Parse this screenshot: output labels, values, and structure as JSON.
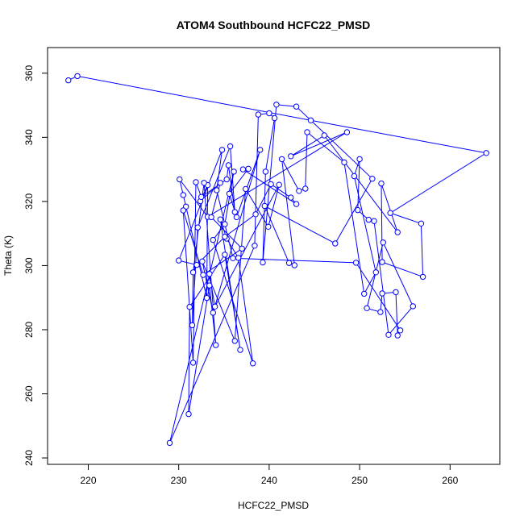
{
  "chart_data": {
    "type": "line",
    "title": "ATOM4 Southbound HCFC22_PMSD",
    "xlabel": "HCFC22_PMSD",
    "ylabel": "Theta (K)",
    "xlim": [
      215.5,
      265.5
    ],
    "ylim": [
      238,
      368
    ],
    "xticks": [
      220,
      230,
      240,
      250,
      260
    ],
    "yticks": [
      240,
      260,
      280,
      300,
      320,
      340,
      360
    ],
    "grid": false,
    "legend": "none",
    "series": [
      {
        "color": "#0000ff",
        "markers": "open-circle",
        "points": [
          [
            217.8,
            357.8
          ],
          [
            218.8,
            359.1
          ],
          [
            244.6,
            345.3
          ],
          [
            264.0,
            335.1
          ],
          [
            253.4,
            316.4
          ],
          [
            256.8,
            313.1
          ],
          [
            257.0,
            296.5
          ],
          [
            252.5,
            301.1
          ],
          [
            252.4,
            325.6
          ],
          [
            254.2,
            310.4
          ],
          [
            246.1,
            340.6
          ],
          [
            242.4,
            334.1
          ],
          [
            248.6,
            341.6
          ],
          [
            233.2,
            315.2
          ],
          [
            230.1,
            326.9
          ],
          [
            230.5,
            322.0
          ],
          [
            230.8,
            318.4
          ],
          [
            233.1,
            289.9
          ],
          [
            233.2,
            325.1
          ],
          [
            232.4,
            320.1
          ],
          [
            234.6,
            325.8
          ],
          [
            233.6,
            315.1
          ],
          [
            237.0,
            305.3
          ],
          [
            232.7,
            297.1
          ],
          [
            230.5,
            317.2
          ],
          [
            231.6,
            269.7
          ],
          [
            231.9,
            326.0
          ],
          [
            232.5,
            321.4
          ],
          [
            235.3,
            326.9
          ],
          [
            235.5,
            331.3
          ],
          [
            236.2,
            316.7
          ],
          [
            235.7,
            337.2
          ],
          [
            232.1,
            311.9
          ],
          [
            231.5,
            281.4
          ],
          [
            231.6,
            297.9
          ],
          [
            232.8,
            325.8
          ],
          [
            234.1,
            275.2
          ],
          [
            233.4,
            293.8
          ],
          [
            231.1,
            253.7
          ],
          [
            231.2,
            287.1
          ],
          [
            235.1,
            303.4
          ],
          [
            236.8,
            273.7
          ],
          [
            234.6,
            314.4
          ],
          [
            235.3,
            308.4
          ],
          [
            236.6,
            302.4
          ],
          [
            238.2,
            269.5
          ],
          [
            233.8,
            308.0
          ],
          [
            235.1,
            312.9
          ],
          [
            236.1,
            329.3
          ],
          [
            229.0,
            244.7
          ],
          [
            238.4,
            306.2
          ],
          [
            238.8,
            347.1
          ],
          [
            240.0,
            347.5
          ],
          [
            240.6,
            346.0
          ],
          [
            239.6,
            329.3
          ],
          [
            239.3,
            301.0
          ],
          [
            240.8,
            350.2
          ],
          [
            243.0,
            349.6
          ],
          [
            251.4,
            327.1
          ],
          [
            247.3,
            306.9
          ],
          [
            239.5,
            318.6
          ],
          [
            242.2,
            300.8
          ],
          [
            242.8,
            300.1
          ],
          [
            241.4,
            333.2
          ],
          [
            243.3,
            323.3
          ],
          [
            244.0,
            324.0
          ],
          [
            244.2,
            341.6
          ],
          [
            248.3,
            332.2
          ],
          [
            250.5,
            291.2
          ],
          [
            251.8,
            297.9
          ],
          [
            249.4,
            327.9
          ],
          [
            250.0,
            333.2
          ],
          [
            249.8,
            317.3
          ],
          [
            251.0,
            314.3
          ],
          [
            251.6,
            313.9
          ],
          [
            253.2,
            278.4
          ],
          [
            255.9,
            287.3
          ],
          [
            252.6,
            307.2
          ],
          [
            250.8,
            286.7
          ],
          [
            252.3,
            285.5
          ],
          [
            252.5,
            291.3
          ],
          [
            254.0,
            291.7
          ],
          [
            254.2,
            278.2
          ],
          [
            254.5,
            279.8
          ],
          [
            249.6,
            300.9
          ],
          [
            236.0,
            302.3
          ],
          [
            234.2,
            323.5
          ],
          [
            234.8,
            336.1
          ],
          [
            230.0,
            301.6
          ],
          [
            232.0,
            300.2
          ],
          [
            235.1,
            309.0
          ],
          [
            238.5,
            316.0
          ],
          [
            240.2,
            325.4
          ],
          [
            242.4,
            321.2
          ],
          [
            243.0,
            319.2
          ],
          [
            237.1,
            330.0
          ],
          [
            237.7,
            330.2
          ],
          [
            235.6,
            322.4
          ],
          [
            236.4,
            315.1
          ],
          [
            239.0,
            336.1
          ],
          [
            233.8,
            285.3
          ],
          [
            232.6,
            301.3
          ],
          [
            236.2,
            276.5
          ],
          [
            237.4,
            323.9
          ],
          [
            239.9,
            312.1
          ],
          [
            241.1,
            325.2
          ],
          [
            234.0,
            287.2
          ],
          [
            233.4,
            297.4
          ]
        ]
      }
    ]
  }
}
